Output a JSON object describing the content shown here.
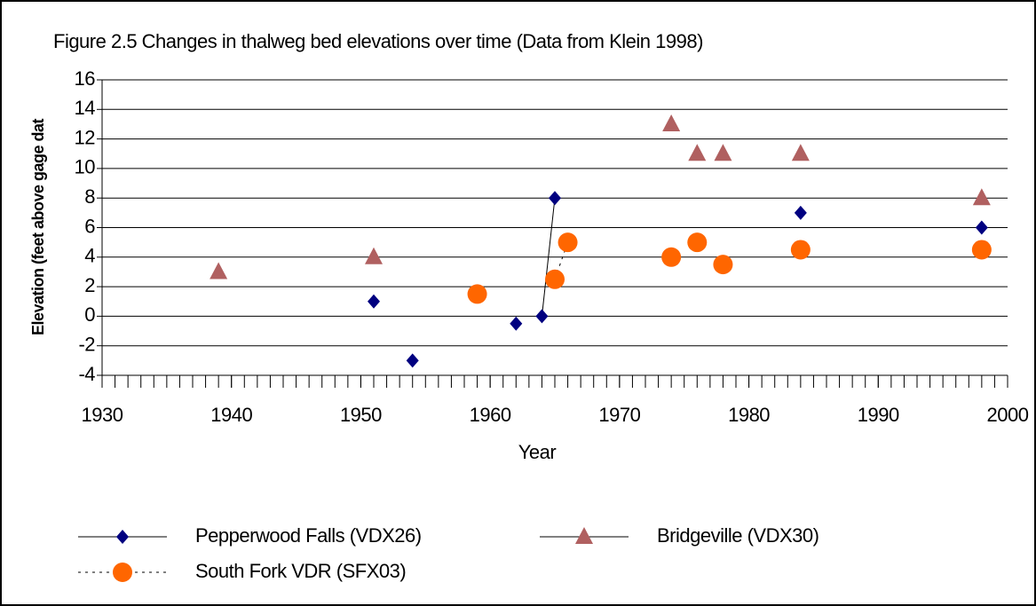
{
  "chart_data": {
    "type": "scatter",
    "title": "Figure 2.5  Changes in thalweg bed elevations over time (Data from Klein 1998)",
    "xlabel": "Year",
    "ylabel": "Elevation (feet above gage dat",
    "xlim": [
      1930,
      2000
    ],
    "xticks": [
      1930,
      1940,
      1950,
      1960,
      1970,
      1980,
      1990,
      2000
    ],
    "ylim": [
      -4,
      16
    ],
    "yticks": [
      -4,
      -2,
      0,
      2,
      4,
      6,
      8,
      10,
      12,
      14,
      16
    ],
    "grid": true,
    "series": [
      {
        "name": "Pepperwood Falls (VDX26)",
        "color": "#000080",
        "marker": "diamond",
        "line": "solid",
        "x": [
          1951,
          null,
          1954,
          null,
          1962,
          null,
          1964,
          1965,
          null,
          1984,
          null,
          1998
        ],
        "values": [
          1,
          null,
          -3,
          null,
          -0.5,
          null,
          0,
          8,
          null,
          7,
          null,
          6
        ]
      },
      {
        "name": "Bridgeville (VDX30)",
        "color": "#b06060",
        "marker": "triangle",
        "line": "solid",
        "x": [
          1939,
          null,
          1951,
          null,
          1974,
          null,
          1976,
          null,
          1978,
          null,
          1984,
          null,
          1998
        ],
        "values": [
          3,
          null,
          4,
          null,
          13,
          null,
          11,
          null,
          11,
          null,
          11,
          null,
          8
        ]
      },
      {
        "name": "South Fork VDR (SFX03)",
        "color": "#ff6600",
        "marker": "circle",
        "line": "dashed",
        "x": [
          1959,
          null,
          1965,
          1966,
          null,
          1974,
          null,
          1976,
          null,
          1978,
          null,
          1984,
          null,
          1998
        ],
        "values": [
          1.5,
          null,
          2.5,
          5,
          null,
          4,
          null,
          5,
          null,
          3.5,
          null,
          4.5,
          null,
          4.5
        ]
      }
    ]
  }
}
